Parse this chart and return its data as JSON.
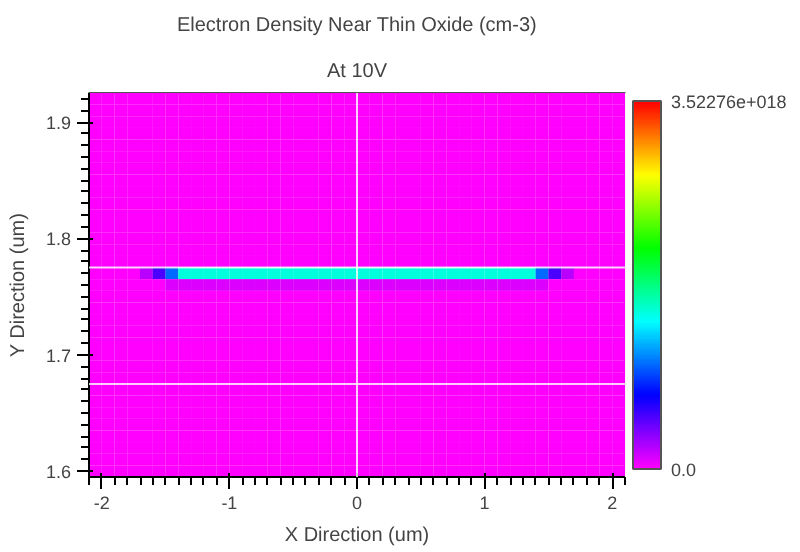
{
  "chart_data": {
    "type": "heatmap",
    "title": "Electron Density Near Thin Oxide (cm-3)",
    "subtitle": "At 10V",
    "xlabel": "X Direction (um)",
    "ylabel": "Y Direction (um)",
    "xlim": [
      -2.1,
      2.1
    ],
    "ylim": [
      1.595,
      1.925
    ],
    "xticks": [
      -2,
      -1,
      0,
      1,
      2
    ],
    "yticks": [
      1.6,
      1.7,
      1.8,
      1.9
    ],
    "clim": [
      0,
      3.52276e+18
    ],
    "cticks": [
      {
        "value": 0,
        "label": "0.0"
      },
      {
        "value": 3.52276e+18,
        "label": "3.52276e+018"
      }
    ],
    "ref_lines": [
      {
        "axis": "x",
        "value": 0,
        "color": "#ffffff"
      },
      {
        "axis": "y",
        "value": 1.675,
        "color": "#ffffff"
      },
      {
        "axis": "y",
        "value": 1.775,
        "color": "#ffffff"
      }
    ],
    "cells": [
      [
        0,
        0,
        0,
        0,
        0,
        0,
        0,
        0,
        0,
        0,
        0,
        0,
        0,
        0,
        0,
        0,
        0,
        0,
        0,
        0,
        0,
        0,
        0,
        0,
        0,
        0,
        0,
        0,
        0,
        0,
        0,
        0,
        0,
        0,
        0,
        0,
        0,
        0,
        0,
        0,
        0,
        0
      ],
      [
        0,
        0,
        0,
        0,
        0,
        0,
        0,
        0,
        0,
        0,
        0,
        0,
        0,
        0,
        0,
        0,
        0,
        0,
        0,
        0,
        0,
        0,
        0,
        0,
        0,
        0,
        0,
        0,
        0,
        0,
        0,
        0,
        0,
        0,
        0,
        0,
        0,
        0,
        0,
        0,
        0,
        0
      ],
      [
        0,
        0,
        0,
        0,
        0,
        0,
        0,
        0,
        0,
        0,
        0,
        0,
        0,
        0,
        0,
        0,
        0,
        0,
        0,
        0,
        0,
        0,
        0,
        0,
        0,
        0,
        0,
        0,
        0,
        0,
        0,
        0,
        0,
        0,
        0,
        0,
        0,
        0,
        0,
        0,
        0,
        0
      ],
      [
        0,
        0,
        0,
        0,
        0,
        0,
        0,
        0,
        0,
        0,
        0,
        0,
        0,
        0,
        0,
        0,
        0,
        0,
        0,
        0,
        0,
        0,
        0,
        0,
        0,
        0,
        0,
        0,
        0,
        0,
        0,
        0,
        0,
        0,
        0,
        0,
        0,
        0,
        0,
        0,
        0,
        0
      ],
      [
        0,
        0,
        0,
        0,
        0,
        0,
        0,
        0,
        0,
        0,
        0,
        0,
        0,
        0,
        0,
        0,
        0,
        0,
        0,
        0,
        0,
        0,
        0,
        0,
        0,
        0,
        0,
        0,
        0,
        0,
        0,
        0,
        0,
        0,
        0,
        0,
        0,
        0,
        0,
        0,
        0,
        0
      ],
      [
        0,
        0,
        0,
        0,
        0,
        0,
        0,
        0,
        0,
        0,
        0,
        0,
        0,
        0,
        0,
        0,
        0,
        0,
        0,
        0,
        0,
        0,
        0,
        0,
        0,
        0,
        0,
        0,
        0,
        0,
        0,
        0,
        0,
        0,
        0,
        0,
        0,
        0,
        0,
        0,
        0,
        0
      ],
      [
        0,
        0,
        0,
        0,
        0,
        0,
        0,
        0,
        0,
        0,
        0,
        0,
        0,
        0,
        0,
        0,
        0,
        0,
        0,
        0,
        0,
        0,
        0,
        0,
        0,
        0,
        0,
        0,
        0,
        0,
        0,
        0,
        0,
        0,
        0,
        0,
        0,
        0,
        0,
        0,
        0,
        0
      ],
      [
        0,
        0,
        0,
        0,
        0,
        0,
        0,
        0,
        0,
        0,
        0,
        0,
        0,
        0,
        0,
        0,
        0,
        0,
        0,
        0,
        0,
        0,
        0,
        0,
        0,
        0,
        0,
        0,
        0,
        0,
        0,
        0,
        0,
        0,
        0,
        0,
        0,
        0,
        0,
        0,
        0,
        0
      ],
      [
        0,
        0,
        0,
        0,
        0,
        0,
        0,
        0,
        0,
        0,
        0,
        0,
        0,
        0,
        0,
        0,
        0,
        0,
        0,
        0,
        0,
        0,
        0,
        0,
        0,
        0,
        0,
        0,
        0,
        0,
        0,
        0,
        0,
        0,
        0,
        0,
        0,
        0,
        0,
        0,
        0,
        0
      ],
      [
        0,
        0,
        0,
        0,
        0,
        0,
        0,
        0,
        0,
        0,
        0,
        0,
        0,
        0,
        0,
        0,
        0,
        0,
        0,
        0,
        0,
        0,
        0,
        0,
        0,
        0,
        0,
        0,
        0,
        0,
        0,
        0,
        0,
        0,
        0,
        0,
        0,
        0,
        0,
        0,
        0,
        0
      ],
      [
        0,
        0,
        0,
        0,
        0,
        0,
        0,
        0,
        0,
        0,
        0,
        0,
        0,
        0,
        0,
        0,
        0,
        0,
        0,
        0,
        0,
        0,
        0,
        0,
        0,
        0,
        0,
        0,
        0,
        0,
        0,
        0,
        0,
        0,
        0,
        0,
        0,
        0,
        0,
        0,
        0,
        0
      ],
      [
        0,
        0,
        0,
        0,
        0,
        0,
        0,
        0,
        0,
        0,
        0,
        0,
        0,
        0,
        0,
        0,
        0,
        0,
        0,
        0,
        0,
        0,
        0,
        0,
        0,
        0,
        0,
        0,
        0,
        0,
        0,
        0,
        0,
        0,
        0,
        0,
        0,
        0,
        0,
        0,
        0,
        0
      ],
      [
        0,
        0,
        0,
        0,
        0,
        0,
        0,
        0,
        0,
        0,
        0,
        0,
        0,
        0,
        0,
        0,
        0,
        0,
        0,
        0,
        0,
        0,
        0,
        0,
        0,
        0,
        0,
        0,
        0,
        0,
        0,
        0,
        0,
        0,
        0,
        0,
        0,
        0,
        0,
        0,
        0,
        0
      ],
      [
        0,
        0,
        0,
        0,
        0,
        0,
        0,
        0,
        0,
        0,
        0,
        0,
        0,
        0,
        0,
        0,
        0,
        0,
        0,
        0,
        0,
        0,
        0,
        0,
        0,
        0,
        0,
        0,
        0,
        0,
        0,
        0,
        0,
        0,
        0,
        0,
        0,
        0,
        0,
        0,
        0,
        0
      ],
      [
        0,
        0,
        0,
        0,
        0,
        0,
        0,
        0,
        0,
        0,
        0,
        0,
        0,
        0,
        0,
        0,
        0,
        0,
        0,
        0,
        0,
        0,
        0,
        0,
        0,
        0,
        0,
        0,
        0,
        0,
        0,
        0,
        0,
        0,
        0,
        0,
        0,
        0,
        0,
        0,
        0,
        0
      ],
      [
        0,
        0,
        0,
        0,
        2e+17,
        5e+17,
        1e+18,
        1.5e+18,
        1.5e+18,
        1.5e+18,
        1.5e+18,
        1.5e+18,
        1.5e+18,
        1.5e+18,
        1.5e+18,
        1.5e+18,
        1.5e+18,
        1.5e+18,
        1.5e+18,
        1.5e+18,
        1.5e+18,
        1.5e+18,
        1.5e+18,
        1.5e+18,
        1.5e+18,
        1.5e+18,
        1.5e+18,
        1.5e+18,
        1.5e+18,
        1.5e+18,
        1.5e+18,
        1.5e+18,
        1.5e+18,
        1.5e+18,
        1.5e+18,
        1e+18,
        5e+17,
        2e+17,
        0,
        0,
        0,
        0
      ],
      [
        0,
        0,
        0,
        0,
        0,
        0,
        1e+17,
        1e+17,
        1e+17,
        1e+17,
        1e+17,
        1e+17,
        1e+17,
        1e+17,
        1e+17,
        1e+17,
        1e+17,
        1e+17,
        1e+17,
        1e+17,
        1e+17,
        1e+17,
        1e+17,
        1e+17,
        1e+17,
        1e+17,
        1e+17,
        1e+17,
        1e+17,
        1e+17,
        1e+17,
        1e+17,
        1e+17,
        1e+17,
        1e+17,
        1e+17,
        0,
        0,
        0,
        0,
        0,
        0
      ],
      [
        0,
        0,
        0,
        0,
        0,
        0,
        0,
        0,
        0,
        0,
        0,
        0,
        0,
        0,
        0,
        0,
        0,
        0,
        0,
        0,
        0,
        0,
        0,
        0,
        0,
        0,
        0,
        0,
        0,
        0,
        0,
        0,
        0,
        0,
        0,
        0,
        0,
        0,
        0,
        0,
        0,
        0
      ],
      [
        0,
        0,
        0,
        0,
        0,
        0,
        0,
        0,
        0,
        0,
        0,
        0,
        0,
        0,
        0,
        0,
        0,
        0,
        0,
        0,
        0,
        0,
        0,
        0,
        0,
        0,
        0,
        0,
        0,
        0,
        0,
        0,
        0,
        0,
        0,
        0,
        0,
        0,
        0,
        0,
        0,
        0
      ],
      [
        0,
        0,
        0,
        0,
        0,
        0,
        0,
        0,
        0,
        0,
        0,
        0,
        0,
        0,
        0,
        0,
        0,
        0,
        0,
        0,
        0,
        0,
        0,
        0,
        0,
        0,
        0,
        0,
        0,
        0,
        0,
        0,
        0,
        0,
        0,
        0,
        0,
        0,
        0,
        0,
        0,
        0
      ],
      [
        0,
        0,
        0,
        0,
        0,
        0,
        0,
        0,
        0,
        0,
        0,
        0,
        0,
        0,
        0,
        0,
        0,
        0,
        0,
        0,
        0,
        0,
        0,
        0,
        0,
        0,
        0,
        0,
        0,
        0,
        0,
        0,
        0,
        0,
        0,
        0,
        0,
        0,
        0,
        0,
        0,
        0
      ],
      [
        0,
        0,
        0,
        0,
        0,
        0,
        0,
        0,
        0,
        0,
        0,
        0,
        0,
        0,
        0,
        0,
        0,
        0,
        0,
        0,
        0,
        0,
        0,
        0,
        0,
        0,
        0,
        0,
        0,
        0,
        0,
        0,
        0,
        0,
        0,
        0,
        0,
        0,
        0,
        0,
        0,
        0
      ],
      [
        0,
        0,
        0,
        0,
        0,
        0,
        0,
        0,
        0,
        0,
        0,
        0,
        0,
        0,
        0,
        0,
        0,
        0,
        0,
        0,
        0,
        0,
        0,
        0,
        0,
        0,
        0,
        0,
        0,
        0,
        0,
        0,
        0,
        0,
        0,
        0,
        0,
        0,
        0,
        0,
        0,
        0
      ],
      [
        0,
        0,
        0,
        0,
        0,
        0,
        0,
        0,
        0,
        0,
        0,
        0,
        0,
        0,
        0,
        0,
        0,
        0,
        0,
        0,
        0,
        0,
        0,
        0,
        0,
        0,
        0,
        0,
        0,
        0,
        0,
        0,
        0,
        0,
        0,
        0,
        0,
        0,
        0,
        0,
        0,
        0
      ],
      [
        0,
        0,
        0,
        0,
        0,
        0,
        0,
        0,
        0,
        0,
        0,
        0,
        0,
        0,
        0,
        0,
        0,
        0,
        0,
        0,
        0,
        0,
        0,
        0,
        0,
        0,
        0,
        0,
        0,
        0,
        0,
        0,
        0,
        0,
        0,
        0,
        0,
        0,
        0,
        0,
        0,
        0
      ],
      [
        0,
        0,
        0,
        0,
        0,
        0,
        0,
        0,
        0,
        0,
        0,
        0,
        0,
        0,
        0,
        0,
        0,
        0,
        0,
        0,
        0,
        0,
        0,
        0,
        0,
        0,
        0,
        0,
        0,
        0,
        0,
        0,
        0,
        0,
        0,
        0,
        0,
        0,
        0,
        0,
        0,
        0
      ],
      [
        0,
        0,
        0,
        0,
        0,
        0,
        0,
        0,
        0,
        0,
        0,
        0,
        0,
        0,
        0,
        0,
        0,
        0,
        0,
        0,
        0,
        0,
        0,
        0,
        0,
        0,
        0,
        0,
        0,
        0,
        0,
        0,
        0,
        0,
        0,
        0,
        0,
        0,
        0,
        0,
        0,
        0
      ],
      [
        0,
        0,
        0,
        0,
        0,
        0,
        0,
        0,
        0,
        0,
        0,
        0,
        0,
        0,
        0,
        0,
        0,
        0,
        0,
        0,
        0,
        0,
        0,
        0,
        0,
        0,
        0,
        0,
        0,
        0,
        0,
        0,
        0,
        0,
        0,
        0,
        0,
        0,
        0,
        0,
        0,
        0
      ],
      [
        0,
        0,
        0,
        0,
        0,
        0,
        0,
        0,
        0,
        0,
        0,
        0,
        0,
        0,
        0,
        0,
        0,
        0,
        0,
        0,
        0,
        0,
        0,
        0,
        0,
        0,
        0,
        0,
        0,
        0,
        0,
        0,
        0,
        0,
        0,
        0,
        0,
        0,
        0,
        0,
        0,
        0
      ],
      [
        0,
        0,
        0,
        0,
        0,
        0,
        0,
        0,
        0,
        0,
        0,
        0,
        0,
        0,
        0,
        0,
        0,
        0,
        0,
        0,
        0,
        0,
        0,
        0,
        0,
        0,
        0,
        0,
        0,
        0,
        0,
        0,
        0,
        0,
        0,
        0,
        0,
        0,
        0,
        0,
        0,
        0
      ],
      [
        0,
        0,
        0,
        0,
        0,
        0,
        0,
        0,
        0,
        0,
        0,
        0,
        0,
        0,
        0,
        0,
        0,
        0,
        0,
        0,
        0,
        0,
        0,
        0,
        0,
        0,
        0,
        0,
        0,
        0,
        0,
        0,
        0,
        0,
        0,
        0,
        0,
        0,
        0,
        0,
        0,
        0
      ],
      [
        0,
        0,
        0,
        0,
        0,
        0,
        0,
        0,
        0,
        0,
        0,
        0,
        0,
        0,
        0,
        0,
        0,
        0,
        0,
        0,
        0,
        0,
        0,
        0,
        0,
        0,
        0,
        0,
        0,
        0,
        0,
        0,
        0,
        0,
        0,
        0,
        0,
        0,
        0,
        0,
        0,
        0
      ],
      [
        0,
        0,
        0,
        0,
        0,
        0,
        0,
        0,
        0,
        0,
        0,
        0,
        0,
        0,
        0,
        0,
        0,
        0,
        0,
        0,
        0,
        0,
        0,
        0,
        0,
        0,
        0,
        0,
        0,
        0,
        0,
        0,
        0,
        0,
        0,
        0,
        0,
        0,
        0,
        0,
        0,
        0
      ]
    ]
  }
}
